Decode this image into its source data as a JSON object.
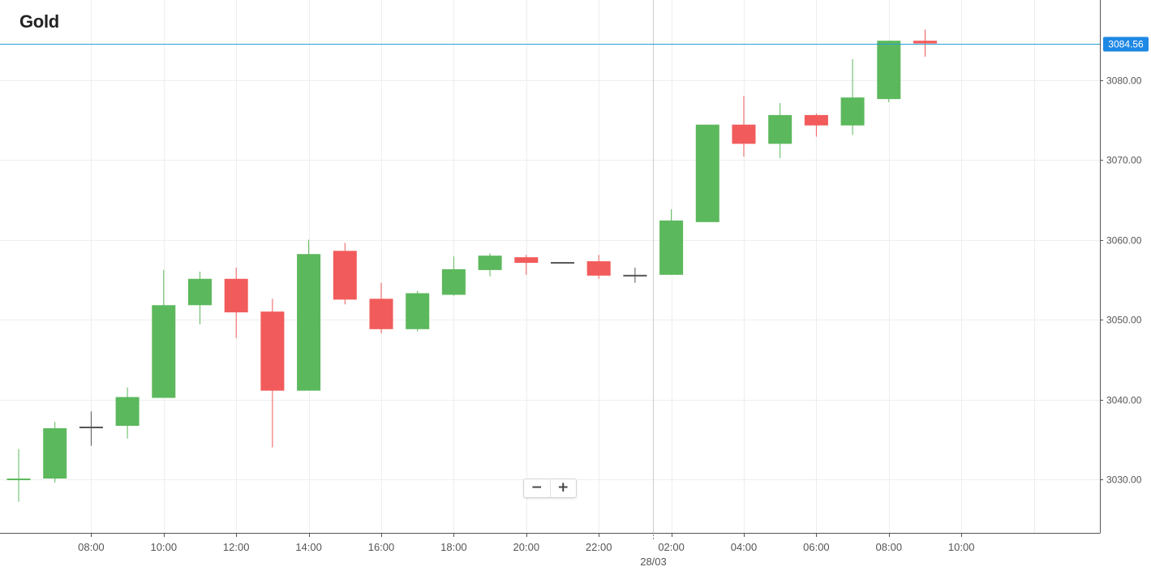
{
  "title": "Gold",
  "chart_data": {
    "type": "candlestick",
    "title": "Gold",
    "interval": "1h",
    "x_labels": [
      "08:00",
      "10:00",
      "12:00",
      "14:00",
      "16:00",
      "18:00",
      "20:00",
      "22:00",
      "28/03",
      "02:00",
      "04:00",
      "06:00",
      "08:00",
      "10:00"
    ],
    "date_separator_label": "28/03",
    "y_axis": {
      "ticks": [
        "3030.00",
        "3040.00",
        "3050.00",
        "3060.00",
        "3070.00",
        "3080.00"
      ],
      "range": [
        3023.3,
        3090.0
      ],
      "position": "right"
    },
    "current_price": "3084.56",
    "colors": {
      "up": "#5cb85c",
      "down": "#f25b5b",
      "flat": "#555555",
      "price_line": "#2a9fd6",
      "price_label_bg": "#1e88e5",
      "grid": "#eeeeee",
      "axis": "#555555"
    },
    "grid": true,
    "candles": [
      {
        "t": "06:00",
        "o": 3029.9,
        "h": 3033.8,
        "l": 3027.2,
        "c": 3030.1
      },
      {
        "t": "07:00",
        "o": 3030.1,
        "h": 3037.2,
        "l": 3029.6,
        "c": 3036.4
      },
      {
        "t": "08:00",
        "o": 3036.6,
        "h": 3038.5,
        "l": 3034.2,
        "c": 3036.6
      },
      {
        "t": "09:00",
        "o": 3036.7,
        "h": 3041.5,
        "l": 3035.1,
        "c": 3040.3
      },
      {
        "t": "10:00",
        "o": 3040.2,
        "h": 3056.2,
        "l": 3040.2,
        "c": 3051.8
      },
      {
        "t": "11:00",
        "o": 3051.8,
        "h": 3056.0,
        "l": 3049.4,
        "c": 3055.1
      },
      {
        "t": "12:00",
        "o": 3055.1,
        "h": 3056.5,
        "l": 3047.7,
        "c": 3050.9
      },
      {
        "t": "13:00",
        "o": 3051.0,
        "h": 3052.6,
        "l": 3034.0,
        "c": 3041.1
      },
      {
        "t": "14:00",
        "o": 3041.1,
        "h": 3060.0,
        "l": 3041.1,
        "c": 3058.2
      },
      {
        "t": "15:00",
        "o": 3058.6,
        "h": 3059.6,
        "l": 3051.9,
        "c": 3052.5
      },
      {
        "t": "16:00",
        "o": 3052.6,
        "h": 3054.6,
        "l": 3048.3,
        "c": 3048.8
      },
      {
        "t": "17:00",
        "o": 3048.8,
        "h": 3053.6,
        "l": 3048.5,
        "c": 3053.3
      },
      {
        "t": "18:00",
        "o": 3053.1,
        "h": 3057.9,
        "l": 3053.0,
        "c": 3056.3
      },
      {
        "t": "19:00",
        "o": 3056.2,
        "h": 3058.3,
        "l": 3055.4,
        "c": 3058.0
      },
      {
        "t": "20:00",
        "o": 3057.8,
        "h": 3058.1,
        "l": 3055.6,
        "c": 3057.1
      },
      {
        "t": "21:00",
        "o": 3057.2,
        "h": 3057.2,
        "l": 3057.2,
        "c": 3057.2
      },
      {
        "t": "22:00",
        "o": 3057.3,
        "h": 3058.1,
        "l": 3055.1,
        "c": 3055.5
      },
      {
        "t": "23:00",
        "o": 3055.6,
        "h": 3056.5,
        "l": 3054.6,
        "c": 3055.6
      },
      {
        "t": "00:00",
        "o": 3055.6,
        "h": 3063.8,
        "l": 3055.6,
        "c": 3062.4
      },
      {
        "t": "01:00",
        "o": 3062.2,
        "h": 3074.4,
        "l": 3062.2,
        "c": 3074.4
      },
      {
        "t": "02:00",
        "o": 3074.4,
        "h": 3078.0,
        "l": 3070.4,
        "c": 3072.0
      },
      {
        "t": "03:00",
        "o": 3072.0,
        "h": 3077.1,
        "l": 3070.2,
        "c": 3075.6
      },
      {
        "t": "04:00",
        "o": 3075.6,
        "h": 3075.8,
        "l": 3072.9,
        "c": 3074.3
      },
      {
        "t": "05:00",
        "o": 3074.3,
        "h": 3082.6,
        "l": 3073.1,
        "c": 3077.8
      },
      {
        "t": "06:00",
        "o": 3077.6,
        "h": 3084.9,
        "l": 3077.2,
        "c": 3084.9
      },
      {
        "t": "07:00",
        "o": 3084.9,
        "h": 3086.3,
        "l": 3082.9,
        "c": 3084.56
      }
    ]
  },
  "zoom": {
    "zoom_out_label": "−",
    "zoom_in_label": "+"
  }
}
